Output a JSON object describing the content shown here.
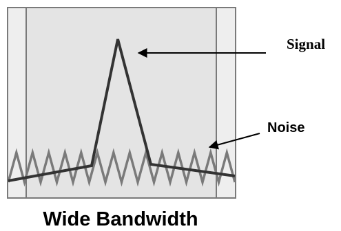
{
  "diagram": {
    "labels": {
      "signal": "Signal",
      "noise": "Noise"
    },
    "caption": "Wide Bandwidth",
    "colors": {
      "outer_box_fill": "#eeeeee",
      "inner_band_fill": "#e4e4e4",
      "box_stroke": "#7a7a7a",
      "signal_line": "#333333",
      "noise_line": "#7a7a7a",
      "arrow": "#000000",
      "text": "#000000"
    }
  }
}
